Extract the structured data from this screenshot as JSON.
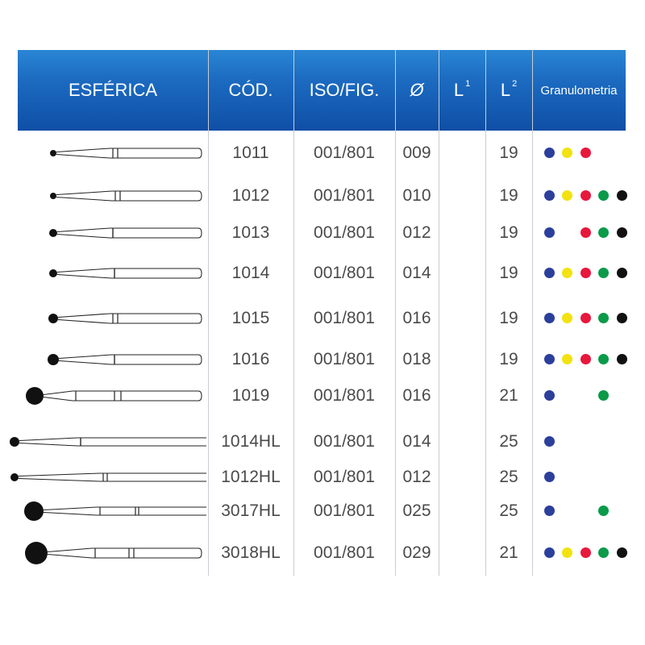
{
  "header": {
    "col_shape": "ESFÉRICA",
    "col_code": "CÓD.",
    "col_iso": "ISO/FIG.",
    "col_diameter": "Ø",
    "col_l1": "L",
    "col_l1_sup": "1",
    "col_l2": "L",
    "col_l2_sup": "2",
    "col_grain": "Granulometria"
  },
  "colors": {
    "header_top": "#2a86d4",
    "header_bottom": "#0f4fa6",
    "grain_blue": "#2b3f9b",
    "grain_yellow": "#f2e20f",
    "grain_red": "#e8173c",
    "grain_green": "#0a9a4a",
    "grain_black": "#111111"
  },
  "grain_order": [
    "blue",
    "yellow",
    "red",
    "green",
    "black"
  ],
  "rows": [
    {
      "code": "1011",
      "iso": "001/801",
      "diameter": "009",
      "l1": "",
      "l2": "19",
      "grains": [
        "blue",
        "yellow",
        "red"
      ]
    },
    {
      "code": "1012",
      "iso": "001/801",
      "diameter": "010",
      "l1": "",
      "l2": "19",
      "grains": [
        "blue",
        "yellow",
        "red",
        "green",
        "black"
      ]
    },
    {
      "code": "1013",
      "iso": "001/801",
      "diameter": "012",
      "l1": "",
      "l2": "19",
      "grains": [
        "blue",
        "red",
        "green",
        "black"
      ]
    },
    {
      "code": "1014",
      "iso": "001/801",
      "diameter": "014",
      "l1": "",
      "l2": "19",
      "grains": [
        "blue",
        "yellow",
        "red",
        "green",
        "black"
      ]
    },
    {
      "code": "1015",
      "iso": "001/801",
      "diameter": "016",
      "l1": "",
      "l2": "19",
      "grains": [
        "blue",
        "yellow",
        "red",
        "green",
        "black"
      ]
    },
    {
      "code": "1016",
      "iso": "001/801",
      "diameter": "018",
      "l1": "",
      "l2": "19",
      "grains": [
        "blue",
        "yellow",
        "red",
        "green",
        "black"
      ]
    },
    {
      "code": "1019",
      "iso": "001/801",
      "diameter": "016",
      "l1": "",
      "l2": "21",
      "grains": [
        "blue",
        "green"
      ]
    },
    {
      "code": "1014HL",
      "iso": "001/801",
      "diameter": "014",
      "l1": "",
      "l2": "25",
      "grains": [
        "blue"
      ]
    },
    {
      "code": "1012HL",
      "iso": "001/801",
      "diameter": "012",
      "l1": "",
      "l2": "25",
      "grains": [
        "blue"
      ]
    },
    {
      "code": "3017HL",
      "iso": "001/801",
      "diameter": "025",
      "l1": "",
      "l2": "25",
      "grains": [
        "blue",
        "green"
      ]
    },
    {
      "code": "3018HL",
      "iso": "001/801",
      "diameter": "029",
      "l1": "",
      "l2": "21",
      "grains": [
        "blue",
        "yellow",
        "red",
        "green",
        "black"
      ]
    }
  ]
}
